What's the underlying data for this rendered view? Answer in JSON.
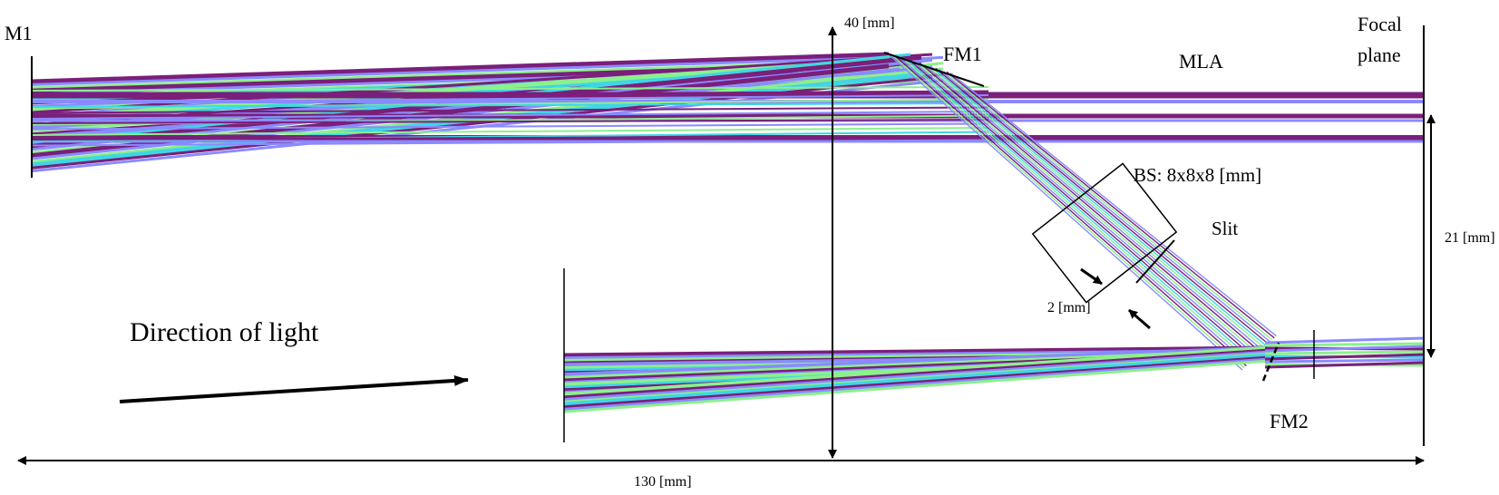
{
  "labels": {
    "m1": "M1",
    "fm1": "FM1",
    "mla": "MLA",
    "focal_line1": "Focal",
    "focal_line2": "plane",
    "bs": "BS: 8x8x8 [mm]",
    "slit": "Slit",
    "fm2": "FM2",
    "dim_height": "40 [mm]",
    "dim_width": "130 [mm]",
    "dim_right": "21 [mm]",
    "dim_gap": "2 [mm]",
    "direction": "Direction of light"
  },
  "colors": {
    "ray_purple": "#7a1f7a",
    "ray_blue": "#8a8aff",
    "ray_green": "#8cf08c",
    "ray_cyan": "#3fd6e6",
    "ray_olive": "#b8b070",
    "ink": "#000000"
  }
}
